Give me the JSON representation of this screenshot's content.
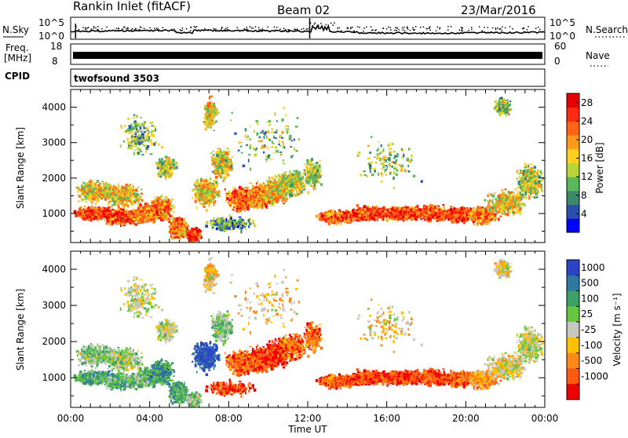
{
  "header": {
    "station": "Rankin Inlet (fitACF)",
    "beam": "Beam 02",
    "date": "23/Mar/2016"
  },
  "noise_panel": {
    "left_label": "N.Sky",
    "right_label": "N.Search",
    "tick_top": "10^5",
    "tick_bottom": "10^0"
  },
  "freq_panel": {
    "left_label_1": "Freq.",
    "left_label_2": "[MHz]",
    "right_label": "Nave",
    "left_ticks": [
      "18",
      "8"
    ],
    "right_ticks": [
      "60",
      "0"
    ]
  },
  "cpid_panel": {
    "label": "CPID",
    "mode": "twofsound 3503"
  },
  "chart_data": [
    {
      "type": "heatmap",
      "title": "",
      "ylabel": "Slant Range [km]",
      "xlabel": "",
      "xlim": [
        "00:00",
        "24:00"
      ],
      "ylim": [
        180,
        4500
      ],
      "yticks": [
        "1000",
        "2000",
        "3000",
        "4000"
      ],
      "colorbar": {
        "label": "Power [dB]",
        "range": [
          0,
          30
        ],
        "ticks": [
          "4",
          "8",
          "12",
          "16",
          "20",
          "24",
          "28"
        ],
        "colors": [
          "#0000ff",
          "#2b4fb0",
          "#3d8a6a",
          "#58b85a",
          "#b8d438",
          "#ffd020",
          "#ff9a18",
          "#ff6414",
          "#ff2a10",
          "#e80000"
        ]
      }
    },
    {
      "type": "heatmap",
      "title": "",
      "ylabel": "Slant Range [km]",
      "xlabel": "Time UT",
      "xlim": [
        "00:00",
        "24:00"
      ],
      "ylim": [
        180,
        4500
      ],
      "yticks": [
        "1000",
        "2000",
        "3000",
        "4000"
      ],
      "xticks": [
        "00:00",
        "04:00",
        "08:00",
        "12:00",
        "16:00",
        "20:00",
        "00:00"
      ],
      "colorbar": {
        "label": "Velocity [m s⁻¹]",
        "ticks": [
          "1000",
          "500",
          "100",
          "25",
          "-25",
          "-100",
          "-500",
          "-1000"
        ],
        "colors": [
          "#2c44c8",
          "#2f79a0",
          "#3f9f68",
          "#66c840",
          "#c8c8c0",
          "#ffc000",
          "#ff8a18",
          "#ff5a10",
          "#f00000"
        ]
      }
    }
  ]
}
